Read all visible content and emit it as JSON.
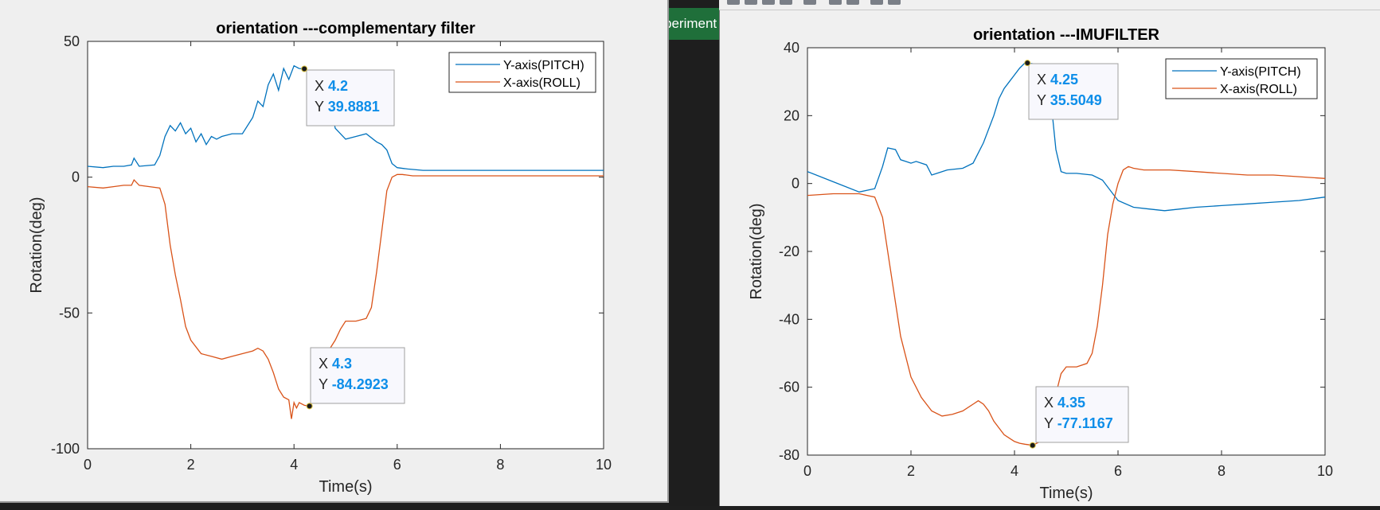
{
  "background_tab": {
    "label": "periment"
  },
  "chart_data": [
    {
      "type": "line",
      "title": "orientation ---complementary filter",
      "xlabel": "Time(s)",
      "ylabel": "Rotation(deg)",
      "xlim": [
        0,
        10
      ],
      "ylim": [
        -100,
        50
      ],
      "xticks": [
        "0",
        "2",
        "4",
        "6",
        "8",
        "10"
      ],
      "yticks": [
        "50",
        "0",
        "-50",
        "-100"
      ],
      "legend_position": "top-right",
      "series": [
        {
          "name": "Y-axis(PITCH)",
          "color": "#0072BD",
          "x": [
            0,
            0.3,
            0.5,
            0.7,
            0.85,
            0.9,
            1.0,
            1.3,
            1.4,
            1.5,
            1.6,
            1.7,
            1.8,
            1.9,
            2.0,
            2.1,
            2.2,
            2.3,
            2.4,
            2.5,
            2.6,
            2.8,
            3.0,
            3.2,
            3.3,
            3.4,
            3.5,
            3.6,
            3.7,
            3.8,
            3.9,
            4.0,
            4.1,
            4.2,
            4.3,
            4.4,
            4.5,
            4.6,
            4.8,
            5.0,
            5.2,
            5.4,
            5.6,
            5.7,
            5.8,
            5.9,
            6.0,
            6.2,
            6.5,
            7.0,
            7.5,
            8.0,
            8.5,
            9.0,
            9.5,
            10.0
          ],
          "values": [
            4,
            3.5,
            4,
            4,
            4.5,
            7,
            4,
            4.5,
            8,
            15,
            19,
            17,
            20,
            16,
            18,
            13,
            16,
            12,
            15,
            14,
            15,
            16,
            16,
            22,
            28,
            26,
            34,
            38,
            32,
            40,
            36,
            41,
            40,
            39.9,
            38,
            37,
            38,
            35,
            18,
            14,
            15,
            16,
            13,
            12,
            10,
            5,
            3.5,
            3,
            2.5,
            2.5,
            2.5,
            2.5,
            2.5,
            2.5,
            2.5,
            2.5
          ]
        },
        {
          "name": "X-axis(ROLL)",
          "color": "#D95319",
          "x": [
            0,
            0.3,
            0.5,
            0.7,
            0.85,
            0.9,
            1.0,
            1.2,
            1.4,
            1.5,
            1.6,
            1.7,
            1.8,
            1.9,
            2.0,
            2.2,
            2.4,
            2.6,
            2.8,
            3.0,
            3.2,
            3.3,
            3.4,
            3.5,
            3.6,
            3.7,
            3.8,
            3.9,
            3.95,
            4.0,
            4.05,
            4.1,
            4.2,
            4.3,
            4.4,
            4.5,
            4.6,
            4.8,
            4.9,
            5.0,
            5.2,
            5.4,
            5.5,
            5.6,
            5.7,
            5.8,
            5.9,
            6.0,
            6.1,
            6.3,
            6.6,
            7.0,
            7.5,
            8.0,
            8.5,
            9.0,
            9.5,
            10.0
          ],
          "values": [
            -3.5,
            -4,
            -3.5,
            -3,
            -3,
            -1,
            -3,
            -3.5,
            -4,
            -10,
            -25,
            -36,
            -45,
            -55,
            -60,
            -65,
            -66,
            -67,
            -66,
            -65,
            -64,
            -63,
            -64,
            -67,
            -72,
            -78,
            -81,
            -82,
            -89,
            -83,
            -85,
            -83,
            -84,
            -84.3,
            -82,
            -76,
            -66,
            -60,
            -56,
            -53,
            -53,
            -52,
            -48,
            -35,
            -20,
            -5,
            0,
            1,
            1,
            0.5,
            0.5,
            0.5,
            0.5,
            0.5,
            0.5,
            0.5,
            0.5,
            0.5
          ]
        }
      ],
      "datatips": [
        {
          "X": "4.2",
          "Y": "39.8881"
        },
        {
          "X": "4.3",
          "Y": "-84.2923"
        }
      ]
    },
    {
      "type": "line",
      "title": "orientation ---IMUFILTER",
      "xlabel": "Time(s)",
      "ylabel": "Rotation(deg)",
      "xlim": [
        0,
        10
      ],
      "ylim": [
        -80,
        40
      ],
      "xticks": [
        "0",
        "2",
        "4",
        "6",
        "8",
        "10"
      ],
      "yticks": [
        "40",
        "20",
        "0",
        "-20",
        "-40",
        "-60",
        "-80"
      ],
      "legend_position": "top-right",
      "series": [
        {
          "name": "Y-axis(PITCH)",
          "color": "#0072BD",
          "x": [
            0,
            0.5,
            1.0,
            1.3,
            1.45,
            1.55,
            1.7,
            1.8,
            1.9,
            2.0,
            2.1,
            2.3,
            2.4,
            2.5,
            2.7,
            3.0,
            3.2,
            3.4,
            3.6,
            3.7,
            3.8,
            3.9,
            4.0,
            4.1,
            4.2,
            4.25,
            4.4,
            4.5,
            4.6,
            4.7,
            4.8,
            4.9,
            5.0,
            5.1,
            5.2,
            5.5,
            5.7,
            5.9,
            6.0,
            6.3,
            6.6,
            6.9,
            7.2,
            7.5,
            8.0,
            8.5,
            9.0,
            9.5,
            10.0
          ],
          "values": [
            3.5,
            0.5,
            -2.5,
            -1.5,
            5,
            10.5,
            10,
            7,
            6.5,
            6,
            6.5,
            5.5,
            2.5,
            3,
            4,
            4.5,
            6,
            12,
            20,
            25,
            28,
            30,
            32,
            34,
            35.5,
            35.5,
            35.2,
            34,
            32,
            25,
            10,
            3.5,
            3,
            3,
            3,
            2.5,
            1,
            -3,
            -5,
            -7,
            -7.5,
            -8,
            -7.5,
            -7,
            -6.5,
            -6,
            -5.5,
            -5,
            -4
          ]
        },
        {
          "name": "X-axis(ROLL)",
          "color": "#D95319",
          "x": [
            0,
            0.5,
            1.0,
            1.3,
            1.45,
            1.6,
            1.8,
            2.0,
            2.2,
            2.4,
            2.6,
            2.8,
            3.0,
            3.2,
            3.3,
            3.4,
            3.5,
            3.6,
            3.7,
            3.8,
            3.9,
            4.0,
            4.1,
            4.2,
            4.35,
            4.5,
            4.6,
            4.7,
            4.8,
            4.9,
            5.0,
            5.1,
            5.2,
            5.4,
            5.5,
            5.6,
            5.7,
            5.8,
            5.9,
            6.0,
            6.1,
            6.2,
            6.3,
            6.5,
            6.8,
            7.0,
            7.5,
            8.0,
            8.5,
            9.0,
            9.5,
            10.0
          ],
          "values": [
            -3.5,
            -3,
            -3,
            -4,
            -10,
            -25,
            -45,
            -57,
            -63,
            -67,
            -68.5,
            -68,
            -67,
            -65,
            -64,
            -65,
            -67,
            -70,
            -72,
            -74,
            -75,
            -76,
            -76.5,
            -76.8,
            -77.1167,
            -76,
            -74,
            -69,
            -62,
            -56,
            -54,
            -54,
            -54,
            -53,
            -50,
            -42,
            -30,
            -15,
            -6,
            0,
            4,
            5,
            4.5,
            4,
            4,
            4,
            3.5,
            3,
            2.5,
            2.5,
            2,
            1.5
          ]
        }
      ],
      "datatips": [
        {
          "X": "4.25",
          "Y": "35.5049"
        },
        {
          "X": "4.35",
          "Y": "-77.1167"
        }
      ]
    }
  ],
  "datatip_labels": {
    "x": "X",
    "y": "Y"
  }
}
